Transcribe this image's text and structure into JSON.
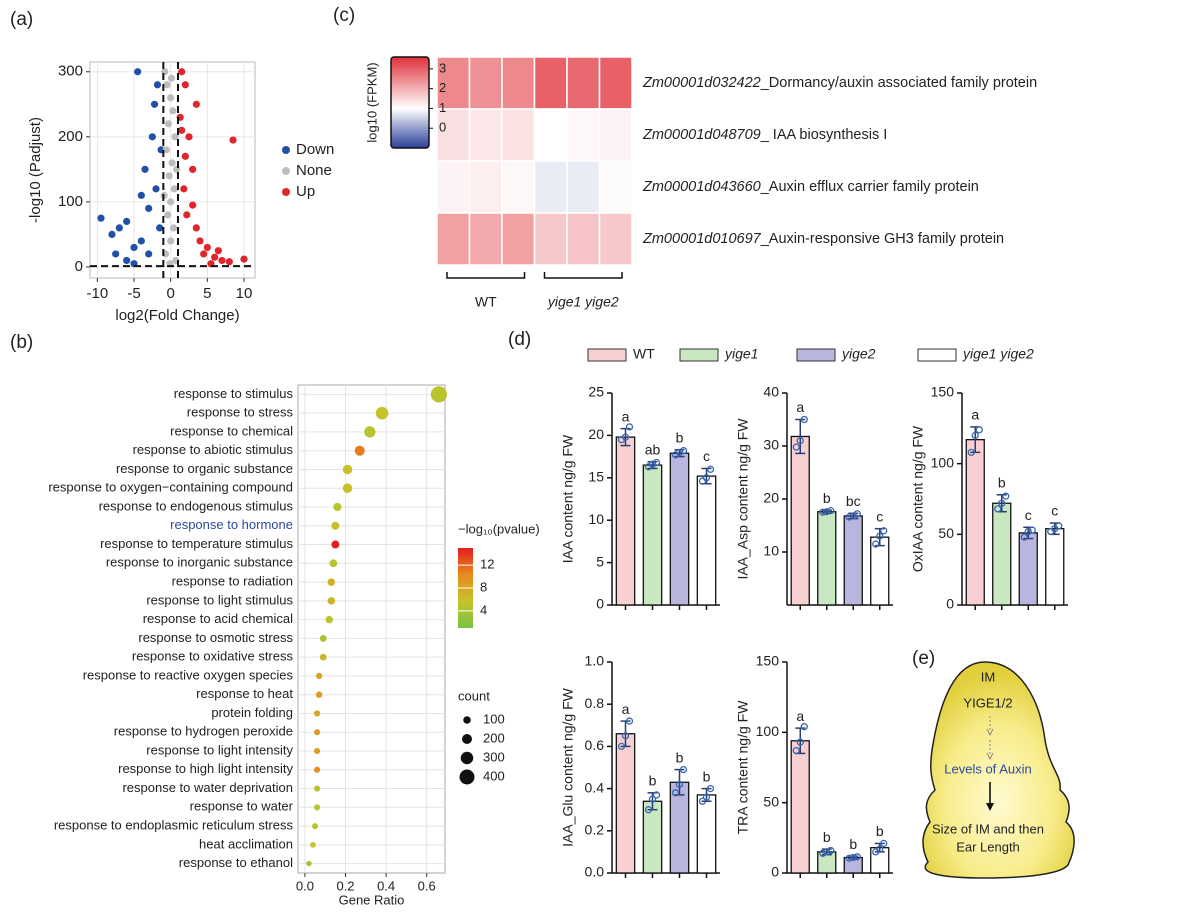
{
  "panels": [
    "(a)",
    "(b)",
    "(c)",
    "(d)",
    "(e)"
  ],
  "chart_data": [
    {
      "type": "scatter",
      "xlabel": "log2(Fold Change)",
      "ylabel": "-log10 (Padjust)",
      "xlim": [
        -11,
        11.5
      ],
      "ylim": [
        -17,
        315
      ],
      "xticks": [
        -10,
        -5,
        0,
        5,
        10
      ],
      "yticks": [
        0,
        100,
        200,
        300
      ],
      "grid": true,
      "threshold_x": [
        -1,
        1
      ],
      "threshold_y": 1.3,
      "legend": "right",
      "series": [
        {
          "name": "Down",
          "color": "#2150a8",
          "x": [
            -9.5,
            -8,
            -7,
            -6,
            -5,
            -4.5,
            -4,
            -3.5,
            -3,
            -2.5,
            -2,
            -1.8,
            -1.5,
            -1.3,
            -7.5,
            -6,
            -5,
            -3,
            -2.2,
            -4
          ],
          "values": [
            75,
            50,
            60,
            70,
            30,
            300,
            40,
            150,
            90,
            200,
            120,
            280,
            60,
            180,
            20,
            10,
            5,
            20,
            250,
            110
          ]
        },
        {
          "name": "None",
          "color": "#bdbdbd",
          "x": [
            -0.8,
            -0.5,
            0,
            0.3,
            -0.3,
            0.6,
            -0.6,
            0.2,
            -0.2,
            0.5,
            0,
            -0.4,
            0.4,
            0,
            -0.7,
            0.7,
            0.1,
            -0.1,
            0.8,
            -0.9
          ],
          "values": [
            300,
            280,
            260,
            240,
            220,
            200,
            180,
            160,
            140,
            120,
            100,
            80,
            60,
            40,
            20,
            10,
            290,
            5,
            150,
            110
          ]
        },
        {
          "name": "Up",
          "color": "#e0262b",
          "x": [
            1.5,
            2,
            2.5,
            1.3,
            3,
            3.5,
            4,
            5,
            6,
            7,
            8,
            10,
            3,
            2,
            1.8,
            4.5,
            5.5,
            2.2,
            1.5,
            6.5,
            8.5,
            3.5
          ],
          "values": [
            300,
            280,
            200,
            230,
            150,
            60,
            40,
            30,
            15,
            10,
            8,
            12,
            95,
            170,
            120,
            20,
            5,
            80,
            210,
            25,
            195,
            250
          ]
        }
      ]
    },
    {
      "type": "dot",
      "xlabel": "Gene Ratio",
      "categories": [
        "response to stimulus",
        "response to stress",
        "response to chemical",
        "response to abiotic stimulus",
        "response to organic substance",
        "response to oxygen−containing compound",
        "response to endogenous stimulus",
        "response to hormone",
        "response to temperature stimulus",
        "response to inorganic substance",
        "response to radiation",
        "response to light stimulus",
        "response to acid chemical",
        "response to osmotic stress",
        "response to oxidative stress",
        "response to reactive oxygen species",
        "response to heat",
        "protein folding",
        "response to hydrogen peroxide",
        "response to light intensity",
        "response to high light intensity",
        "response to water deprivation",
        "response to water",
        "response to endoplasmic reticulum stress",
        "heat acclimation",
        "response to ethanol"
      ],
      "values": [
        0.66,
        0.38,
        0.32,
        0.27,
        0.21,
        0.21,
        0.16,
        0.15,
        0.15,
        0.14,
        0.13,
        0.13,
        0.12,
        0.09,
        0.09,
        0.07,
        0.07,
        0.06,
        0.06,
        0.06,
        0.06,
        0.06,
        0.06,
        0.05,
        0.04,
        0.02
      ],
      "color_values": [
        5,
        6,
        5,
        11,
        6,
        6,
        5,
        6,
        15,
        5,
        7,
        7,
        5,
        4,
        7,
        8,
        9,
        8,
        9,
        9,
        10,
        5,
        5,
        5,
        6,
        4
      ],
      "size_values": [
        450,
        300,
        250,
        200,
        180,
        180,
        130,
        120,
        120,
        110,
        100,
        100,
        95,
        75,
        70,
        55,
        55,
        50,
        45,
        45,
        45,
        45,
        45,
        40,
        30,
        20
      ],
      "highlight_index": 7,
      "highlight_color": "#2b4a9a",
      "xlim": [
        -0.034,
        0.69
      ],
      "xticks": [
        {
          "value": 0,
          "label": "0.0"
        },
        0.2,
        0.4,
        0.6
      ],
      "grid": true,
      "color_title": "−log₁₀(pvalue)",
      "clim": [
        1,
        15
      ],
      "cticks": [
        4,
        8,
        12
      ],
      "colors": [
        "#78c244",
        "#c4c42a",
        "#e88a1e",
        "#e31e1e"
      ],
      "size_title": "count",
      "size_ticks": [
        100,
        200,
        300,
        400
      ]
    },
    {
      "type": "heatmap",
      "gene_ids": [
        "Zm00001d032422",
        "Zm00001d048709",
        "Zm00001d043660",
        "Zm00001d010697"
      ],
      "descriptions": [
        "_Dormancy/auxin associated family protein",
        "_ IAA biosynthesis I",
        "_Auxin efflux carrier family protein",
        "_Auxin-responsive GH3 family protein"
      ],
      "values": [
        [
          2.5,
          2.4,
          2.5,
          3.0,
          2.9,
          3.0
        ],
        [
          1.4,
          1.3,
          1.35,
          1.0,
          1.1,
          1.15
        ],
        [
          1.15,
          1.2,
          1.1,
          0.8,
          0.8,
          1.05
        ],
        [
          2.2,
          2.1,
          2.2,
          1.7,
          1.75,
          1.7
        ]
      ],
      "sample_groups": [
        "WT",
        "yige1 yige2"
      ],
      "color_title": "log10 (FPKM)",
      "clim": [
        -1,
        3.6
      ],
      "center": 1,
      "colors": [
        "#2a3f98",
        "#ffffff",
        "#e0313a"
      ],
      "cticks": [
        0,
        1,
        2,
        3
      ]
    },
    {
      "type": "bar",
      "ylabel": "IAA content ng/g FW",
      "ylim": [
        0,
        25
      ],
      "yticks": [
        0,
        5,
        10,
        15,
        20,
        25
      ],
      "values": [
        19.8,
        16.5,
        17.9,
        15.2
      ],
      "errors": [
        1,
        0.4,
        0.4,
        0.9
      ],
      "letters": [
        "a",
        "ab",
        "b",
        "c"
      ],
      "points": [
        [
          19.5,
          19.8,
          21
        ],
        [
          16.3,
          16.6,
          16.8
        ],
        [
          17.7,
          18,
          18.2
        ],
        [
          14.6,
          15,
          16
        ]
      ]
    },
    {
      "type": "bar",
      "ylabel": "IAA_Asp content ng/g FW",
      "ylim": [
        0,
        40
      ],
      "yticks": [
        10,
        20,
        30,
        40
      ],
      "values": [
        31.8,
        17.6,
        16.8,
        12.8
      ],
      "errors": [
        3.2,
        0.3,
        0.5,
        1.6
      ],
      "letters": [
        "a",
        "b",
        "bc",
        "c"
      ],
      "points": [
        [
          29.8,
          31,
          35
        ],
        [
          17.5,
          17.6,
          17.8
        ],
        [
          16.6,
          16.8,
          17.2
        ],
        [
          11.5,
          13,
          14
        ]
      ]
    },
    {
      "type": "bar",
      "ylabel": "OxIAA content ng/g FW",
      "ylim": [
        0,
        150
      ],
      "yticks": [
        0,
        50,
        100,
        150
      ],
      "values": [
        117,
        72,
        51,
        54
      ],
      "errors": [
        9,
        6,
        4,
        4
      ],
      "letters": [
        "a",
        "b",
        "c",
        "c"
      ],
      "points": [
        [
          108,
          120,
          124
        ],
        [
          68,
          72,
          77
        ],
        [
          48,
          52,
          53
        ],
        [
          52,
          54,
          56
        ]
      ]
    },
    {
      "type": "bar",
      "ylabel": "IAA_Glu content ng/g FW",
      "ylim": [
        0,
        1
      ],
      "yticks": [
        {
          "value": 0,
          "label": "0.0"
        },
        0.2,
        0.4,
        0.6,
        0.8,
        {
          "value": 1,
          "label": "1.0"
        }
      ],
      "values": [
        0.66,
        0.34,
        0.43,
        0.37
      ],
      "errors": [
        0.06,
        0.04,
        0.06,
        0.03
      ],
      "letters": [
        "a",
        "b",
        "b",
        "b"
      ],
      "points": [
        [
          0.6,
          0.65,
          0.72
        ],
        [
          0.3,
          0.35,
          0.37
        ],
        [
          0.38,
          0.42,
          0.49
        ],
        [
          0.34,
          0.36,
          0.4
        ]
      ]
    },
    {
      "type": "bar",
      "ylabel": "TRA content ng/g FW",
      "ylim": [
        0,
        150
      ],
      "yticks": [
        0,
        50,
        100,
        150
      ],
      "values": [
        94,
        15,
        11,
        18
      ],
      "errors": [
        9,
        2,
        1,
        3
      ],
      "letters": [
        "a",
        "b",
        "b",
        "b"
      ],
      "points": [
        [
          87,
          93,
          104
        ],
        [
          14,
          15,
          16
        ],
        [
          10.5,
          11,
          11.5
        ],
        [
          15,
          17,
          21
        ]
      ]
    }
  ],
  "bar_legend": [
    {
      "name": "WT",
      "color": "#f9d0d2",
      "italic": false
    },
    {
      "name": "yige1",
      "color": "#c9e7c1",
      "italic": true
    },
    {
      "name": "yige2",
      "color": "#b8b6de",
      "italic": true
    },
    {
      "name": "yige1 yige2",
      "color": "#ffffff",
      "italic": true
    }
  ],
  "diagram": {
    "top": "IM",
    "gene": "YIGE1/2",
    "middle": "Levels of Auxin",
    "bottom_1": "Size of IM and then",
    "bottom_2": "Ear Length"
  }
}
